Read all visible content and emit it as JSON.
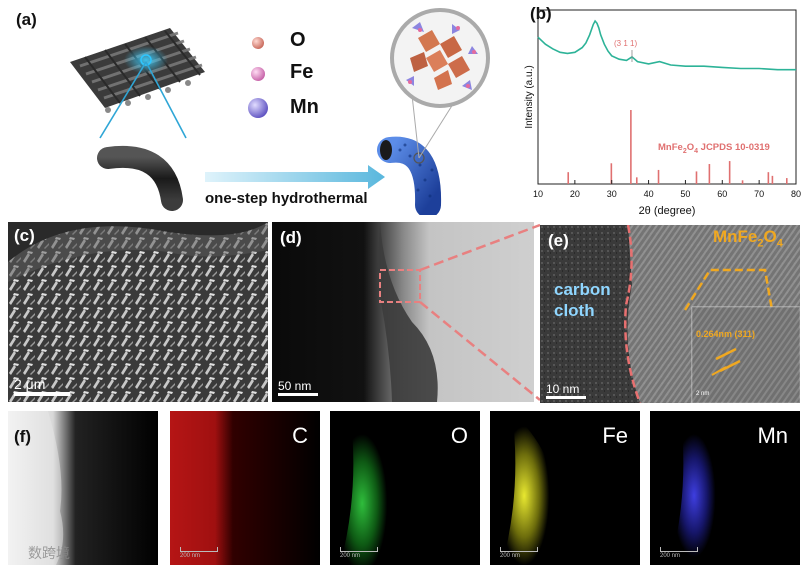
{
  "panels": {
    "a": "(a)",
    "b": "(b)",
    "c": "(c)",
    "d": "(d)",
    "e": "(e)",
    "f": "(f)"
  },
  "panel_a": {
    "legend": [
      {
        "label": "O",
        "color": "#e29a90"
      },
      {
        "label": "Fe",
        "color": "#e9a0cf"
      },
      {
        "label": "Mn",
        "color": "#9a8ee0"
      }
    ],
    "process_label": "one-step hydrothermal"
  },
  "panel_c": {
    "scale": "2 μm"
  },
  "panel_d": {
    "scale": "50 nm"
  },
  "panel_e": {
    "scale": "10 nm",
    "region_label": "carbon\ncloth",
    "particle_label_main": "MnFe",
    "particle_label_sub": "2",
    "particle_label_main2": "O",
    "particle_label_sub2": "4",
    "lattice": "0.264nm (311)",
    "inset_scale": "2 nm"
  },
  "panel_f": {
    "elements": [
      {
        "label": "",
        "color": "#ffffff"
      },
      {
        "label": "C",
        "color": "#d81d1d"
      },
      {
        "label": "O",
        "color": "#23b52a"
      },
      {
        "label": "Fe",
        "color": "#e8e82a"
      },
      {
        "label": "Mn",
        "color": "#3a3ad8"
      }
    ],
    "scale": "200 nm",
    "watermark": "数跨境"
  },
  "chart_data": {
    "type": "line",
    "xlabel": "2θ (degree)",
    "ylabel": "Intensity (a.u.)",
    "xlim": [
      10,
      80
    ],
    "xticks": [
      10,
      20,
      30,
      40,
      50,
      60,
      70,
      80
    ],
    "peak_annotation": "(3 1 1)",
    "peak_annotation_x": 35.5,
    "reference_label_main": "MnFe",
    "reference_label_sub1": "2",
    "reference_label_mid": "O",
    "reference_label_sub2": "4",
    "reference_label_tail": " JCPDS 10-0319",
    "colors": {
      "pattern": "#2db398",
      "reference": "#e07070"
    },
    "pattern": {
      "x": [
        10,
        12,
        14,
        16,
        18,
        20,
        22,
        23,
        24,
        25,
        25.5,
        26,
        26.5,
        27,
        28,
        29,
        30,
        32,
        34,
        35.5,
        37,
        40,
        43,
        46,
        50,
        55,
        60,
        65,
        70,
        75,
        80
      ],
      "y": [
        0.8,
        0.74,
        0.7,
        0.67,
        0.66,
        0.67,
        0.71,
        0.75,
        0.82,
        0.91,
        0.94,
        0.92,
        0.88,
        0.82,
        0.74,
        0.68,
        0.64,
        0.61,
        0.6,
        0.63,
        0.59,
        0.57,
        0.59,
        0.56,
        0.55,
        0.55,
        0.54,
        0.53,
        0.53,
        0.52,
        0.52
      ]
    },
    "reference": {
      "x": [
        18.2,
        29.9,
        35.2,
        36.8,
        42.7,
        53.0,
        56.5,
        62.0,
        65.5,
        72.5,
        73.6,
        77.5
      ],
      "y": [
        0.16,
        0.28,
        1.0,
        0.09,
        0.19,
        0.17,
        0.27,
        0.31,
        0.05,
        0.16,
        0.11,
        0.08
      ]
    }
  }
}
